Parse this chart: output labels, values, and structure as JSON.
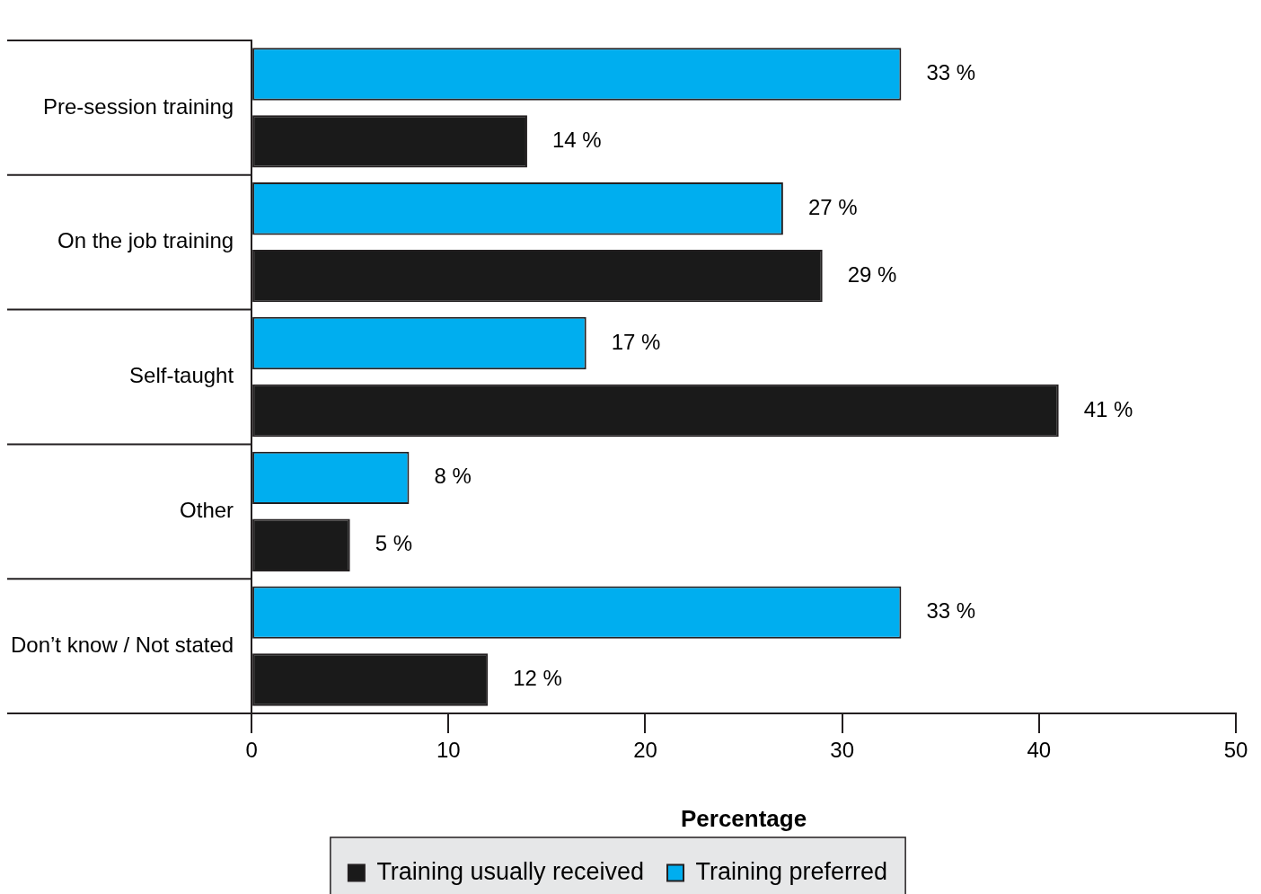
{
  "chart_data": {
    "type": "bar",
    "orientation": "horizontal",
    "xlabel": "Percentage",
    "categories": [
      "Pre-session training",
      "On the job training",
      "Self-taught",
      "Other",
      "Don’t know / Not stated"
    ],
    "series": [
      {
        "name": "Training preferred",
        "color": "#00aeef",
        "values": [
          33,
          27,
          17,
          8,
          33
        ],
        "value_labels": [
          "33 %",
          "27 %",
          "17 %",
          "8 %",
          "33 %"
        ]
      },
      {
        "name": "Training usually received",
        "color": "#1a1a1a",
        "values": [
          14,
          29,
          41,
          5,
          12
        ],
        "value_labels": [
          "14 %",
          "29 %",
          "41 %",
          "5 %",
          "12 %"
        ]
      }
    ],
    "xlim": [
      0,
      50
    ],
    "xticks": [
      0,
      10,
      20,
      30,
      40,
      50
    ],
    "grid": false,
    "legend": "bottom"
  }
}
